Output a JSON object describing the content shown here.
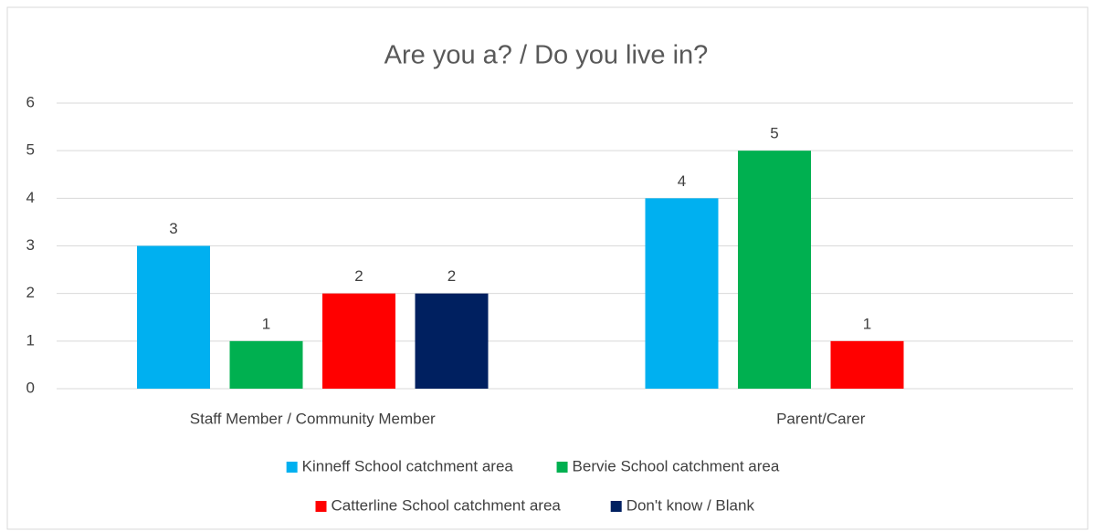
{
  "chart_data": {
    "type": "bar",
    "title": "Are you a? / Do you live in?",
    "categories": [
      "Staff Member / Community Member",
      "Parent/Carer"
    ],
    "series": [
      {
        "name": "Kinneff School catchment area",
        "color": "#00b0f0",
        "values": [
          3,
          4
        ]
      },
      {
        "name": "Bervie School catchment area",
        "color": "#00b050",
        "values": [
          1,
          5
        ]
      },
      {
        "name": "Catterline School catchment area",
        "color": "#ff0000",
        "values": [
          2,
          1
        ]
      },
      {
        "name": "Don't know / Blank",
        "color": "#002060",
        "values": [
          2,
          null
        ]
      }
    ],
    "ylim": [
      0,
      6
    ],
    "yticks": [
      0,
      1,
      2,
      3,
      4,
      5,
      6
    ],
    "grid": true,
    "legend": "bottom"
  }
}
